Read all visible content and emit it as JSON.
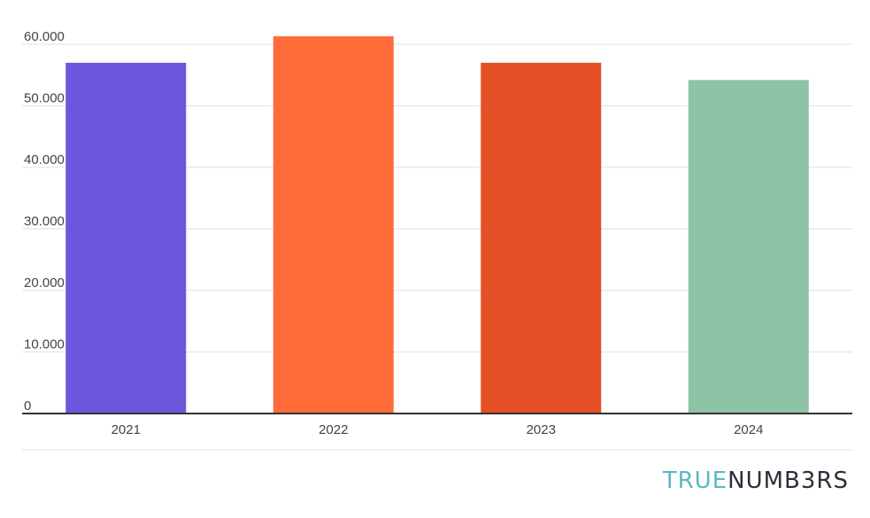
{
  "chart_data": {
    "type": "bar",
    "categories": [
      "2021",
      "2022",
      "2023",
      "2024"
    ],
    "values": [
      57000,
      61300,
      57000,
      54200
    ],
    "colors": [
      "#6e56dc",
      "#ff6b39",
      "#e55026",
      "#8ec3a8"
    ],
    "ylim": [
      0,
      60000
    ],
    "yticks": [
      0,
      10000,
      20000,
      30000,
      40000,
      50000,
      60000
    ],
    "ytick_labels": [
      "0",
      "10.000",
      "20.000",
      "30.000",
      "40.000",
      "50.000",
      "60.000"
    ],
    "grid": true,
    "gridline_color": "#e0e0e0",
    "axis_color": "#333333"
  },
  "brand": {
    "part1": "TRUE",
    "part2": "NUMB3RS"
  }
}
